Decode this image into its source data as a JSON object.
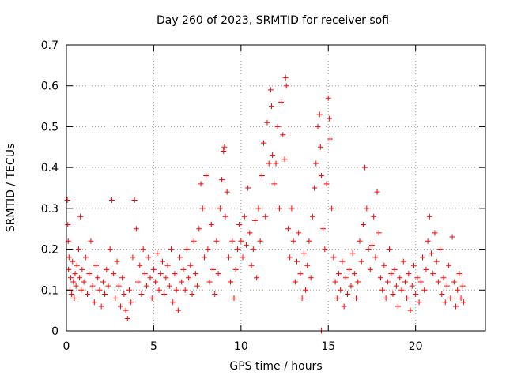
{
  "chart_data": {
    "type": "scatter",
    "title": "Day 260 of 2023, SRMTID for receiver sofi",
    "xlabel": "GPS time / hours",
    "ylabel": "SRMTID / TECUs",
    "xlim": [
      0,
      24
    ],
    "ylim": [
      0,
      0.7
    ],
    "xticks": [
      0,
      5,
      10,
      15,
      20
    ],
    "xtick_labels": [
      "0",
      "5",
      "10",
      "15",
      "20"
    ],
    "yticks": [
      0,
      0.1,
      0.2,
      0.3,
      0.4,
      0.5,
      0.6,
      0.7
    ],
    "ytick_labels": [
      "0",
      "0.1",
      "0.2",
      "0.3",
      "0.4",
      "0.5",
      "0.6",
      "0.7"
    ],
    "grid": true,
    "marker": "+",
    "series_color": "#ff0000",
    "series": [
      {
        "name": "SRMTID",
        "points": [
          [
            0.05,
            0.32
          ],
          [
            0.08,
            0.26
          ],
          [
            0.1,
            0.22
          ],
          [
            0.12,
            0.15
          ],
          [
            0.15,
            0.18
          ],
          [
            0.2,
            0.1
          ],
          [
            0.25,
            0.13
          ],
          [
            0.3,
            0.09
          ],
          [
            0.35,
            0.17
          ],
          [
            0.4,
            0.12
          ],
          [
            0.45,
            0.08
          ],
          [
            0.5,
            0.14
          ],
          [
            0.55,
            0.11
          ],
          [
            0.6,
            0.16
          ],
          [
            0.7,
            0.2
          ],
          [
            0.75,
            0.13
          ],
          [
            0.8,
            0.28
          ],
          [
            0.85,
            0.1
          ],
          [
            0.9,
            0.15
          ],
          [
            1.0,
            0.12
          ],
          [
            1.1,
            0.18
          ],
          [
            1.2,
            0.09
          ],
          [
            1.3,
            0.14
          ],
          [
            1.4,
            0.22
          ],
          [
            1.5,
            0.11
          ],
          [
            1.6,
            0.07
          ],
          [
            1.7,
            0.16
          ],
          [
            1.8,
            0.13
          ],
          [
            1.9,
            0.1
          ],
          [
            2.0,
            0.06
          ],
          [
            2.1,
            0.12
          ],
          [
            2.2,
            0.09
          ],
          [
            2.3,
            0.15
          ],
          [
            2.4,
            0.11
          ],
          [
            2.5,
            0.2
          ],
          [
            2.6,
            0.32
          ],
          [
            2.7,
            0.14
          ],
          [
            2.8,
            0.08
          ],
          [
            2.9,
            0.17
          ],
          [
            3.0,
            0.11
          ],
          [
            3.1,
            0.06
          ],
          [
            3.2,
            0.13
          ],
          [
            3.3,
            0.09
          ],
          [
            3.4,
            0.05
          ],
          [
            3.5,
            0.03
          ],
          [
            3.6,
            0.1
          ],
          [
            3.7,
            0.07
          ],
          [
            3.8,
            0.18
          ],
          [
            3.9,
            0.32
          ],
          [
            4.0,
            0.25
          ],
          [
            4.1,
            0.12
          ],
          [
            4.2,
            0.16
          ],
          [
            4.3,
            0.09
          ],
          [
            4.4,
            0.2
          ],
          [
            4.5,
            0.14
          ],
          [
            4.6,
            0.11
          ],
          [
            4.7,
            0.18
          ],
          [
            4.8,
            0.13
          ],
          [
            4.9,
            0.08
          ],
          [
            5.0,
            0.15
          ],
          [
            5.1,
            0.12
          ],
          [
            5.2,
            0.19
          ],
          [
            5.3,
            0.1
          ],
          [
            5.4,
            0.14
          ],
          [
            5.5,
            0.17
          ],
          [
            5.6,
            0.09
          ],
          [
            5.7,
            0.13
          ],
          [
            5.8,
            0.16
          ],
          [
            5.9,
            0.11
          ],
          [
            6.0,
            0.2
          ],
          [
            6.1,
            0.07
          ],
          [
            6.2,
            0.14
          ],
          [
            6.3,
            0.1
          ],
          [
            6.4,
            0.05
          ],
          [
            6.5,
            0.18
          ],
          [
            6.6,
            0.12
          ],
          [
            6.7,
            0.15
          ],
          [
            6.8,
            0.1
          ],
          [
            6.9,
            0.2
          ],
          [
            7.0,
            0.13
          ],
          [
            7.1,
            0.16
          ],
          [
            7.2,
            0.09
          ],
          [
            7.3,
            0.22
          ],
          [
            7.4,
            0.14
          ],
          [
            7.5,
            0.11
          ],
          [
            7.6,
            0.25
          ],
          [
            7.7,
            0.36
          ],
          [
            7.8,
            0.3
          ],
          [
            7.9,
            0.18
          ],
          [
            8.0,
            0.38
          ],
          [
            8.1,
            0.2
          ],
          [
            8.2,
            0.12
          ],
          [
            8.3,
            0.26
          ],
          [
            8.4,
            0.15
          ],
          [
            8.5,
            0.09
          ],
          [
            8.6,
            0.22
          ],
          [
            8.7,
            0.14
          ],
          [
            8.8,
            0.3
          ],
          [
            8.9,
            0.37
          ],
          [
            9.0,
            0.44
          ],
          [
            9.05,
            0.45
          ],
          [
            9.1,
            0.28
          ],
          [
            9.2,
            0.34
          ],
          [
            9.3,
            0.18
          ],
          [
            9.4,
            0.12
          ],
          [
            9.5,
            0.22
          ],
          [
            9.6,
            0.08
          ],
          [
            9.7,
            0.15
          ],
          [
            9.8,
            0.2
          ],
          [
            9.9,
            0.26
          ],
          [
            10.0,
            0.22
          ],
          [
            10.1,
            0.18
          ],
          [
            10.2,
            0.28
          ],
          [
            10.3,
            0.21
          ],
          [
            10.4,
            0.35
          ],
          [
            10.5,
            0.24
          ],
          [
            10.6,
            0.16
          ],
          [
            10.7,
            0.2
          ],
          [
            10.8,
            0.27
          ],
          [
            10.9,
            0.13
          ],
          [
            11.0,
            0.3
          ],
          [
            11.1,
            0.22
          ],
          [
            11.2,
            0.38
          ],
          [
            11.3,
            0.46
          ],
          [
            11.4,
            0.28
          ],
          [
            11.5,
            0.51
          ],
          [
            11.6,
            0.41
          ],
          [
            11.7,
            0.59
          ],
          [
            11.75,
            0.55
          ],
          [
            11.8,
            0.43
          ],
          [
            11.9,
            0.36
          ],
          [
            12.0,
            0.41
          ],
          [
            12.1,
            0.5
          ],
          [
            12.2,
            0.3
          ],
          [
            12.3,
            0.56
          ],
          [
            12.4,
            0.48
          ],
          [
            12.5,
            0.42
          ],
          [
            12.55,
            0.62
          ],
          [
            12.6,
            0.6
          ],
          [
            12.7,
            0.25
          ],
          [
            12.8,
            0.18
          ],
          [
            12.9,
            0.3
          ],
          [
            13.0,
            0.22
          ],
          [
            13.1,
            0.12
          ],
          [
            13.2,
            0.17
          ],
          [
            13.3,
            0.24
          ],
          [
            13.4,
            0.14
          ],
          [
            13.5,
            0.08
          ],
          [
            13.6,
            0.19
          ],
          [
            13.7,
            0.1
          ],
          [
            13.8,
            0.16
          ],
          [
            13.9,
            0.22
          ],
          [
            14.0,
            0.13
          ],
          [
            14.1,
            0.28
          ],
          [
            14.2,
            0.35
          ],
          [
            14.3,
            0.41
          ],
          [
            14.4,
            0.5
          ],
          [
            14.5,
            0.53
          ],
          [
            14.55,
            0.45
          ],
          [
            14.6,
            0.38
          ],
          [
            14.7,
            0.25
          ],
          [
            14.8,
            0.2
          ],
          [
            14.9,
            0.36
          ],
          [
            15.0,
            0.57
          ],
          [
            15.05,
            0.52
          ],
          [
            15.1,
            0.47
          ],
          [
            15.2,
            0.3
          ],
          [
            15.3,
            0.18
          ],
          [
            15.4,
            0.12
          ],
          [
            15.5,
            0.08
          ],
          [
            15.6,
            0.14
          ],
          [
            15.7,
            0.1
          ],
          [
            15.8,
            0.17
          ],
          [
            15.9,
            0.06
          ],
          [
            16.0,
            0.13
          ],
          [
            16.1,
            0.09
          ],
          [
            16.2,
            0.15
          ],
          [
            16.3,
            0.11
          ],
          [
            16.4,
            0.19
          ],
          [
            16.5,
            0.14
          ],
          [
            16.6,
            0.08
          ],
          [
            16.7,
            0.12
          ],
          [
            16.8,
            0.22
          ],
          [
            16.9,
            0.17
          ],
          [
            17.0,
            0.26
          ],
          [
            17.1,
            0.4
          ],
          [
            17.2,
            0.3
          ],
          [
            17.3,
            0.2
          ],
          [
            17.4,
            0.15
          ],
          [
            17.5,
            0.21
          ],
          [
            17.6,
            0.28
          ],
          [
            17.7,
            0.18
          ],
          [
            17.8,
            0.34
          ],
          [
            17.9,
            0.24
          ],
          [
            18.0,
            0.13
          ],
          [
            18.1,
            0.1
          ],
          [
            18.2,
            0.16
          ],
          [
            18.3,
            0.08
          ],
          [
            18.4,
            0.12
          ],
          [
            18.5,
            0.2
          ],
          [
            18.6,
            0.14
          ],
          [
            18.7,
            0.09
          ],
          [
            18.8,
            0.15
          ],
          [
            18.9,
            0.11
          ],
          [
            19.0,
            0.06
          ],
          [
            19.1,
            0.13
          ],
          [
            19.2,
            0.1
          ],
          [
            19.3,
            0.17
          ],
          [
            19.4,
            0.12
          ],
          [
            19.5,
            0.08
          ],
          [
            19.6,
            0.14
          ],
          [
            19.7,
            0.05
          ],
          [
            19.8,
            0.11
          ],
          [
            19.9,
            0.16
          ],
          [
            20.0,
            0.09
          ],
          [
            20.1,
            0.13
          ],
          [
            20.2,
            0.07
          ],
          [
            20.3,
            0.12
          ],
          [
            20.4,
            0.18
          ],
          [
            20.5,
            0.1
          ],
          [
            20.6,
            0.15
          ],
          [
            20.7,
            0.22
          ],
          [
            20.8,
            0.28
          ],
          [
            20.9,
            0.19
          ],
          [
            21.0,
            0.14
          ],
          [
            21.1,
            0.24
          ],
          [
            21.2,
            0.17
          ],
          [
            21.3,
            0.12
          ],
          [
            21.4,
            0.2
          ],
          [
            21.5,
            0.09
          ],
          [
            21.6,
            0.13
          ],
          [
            21.7,
            0.07
          ],
          [
            21.8,
            0.11
          ],
          [
            21.9,
            0.16
          ],
          [
            22.0,
            0.08
          ],
          [
            22.1,
            0.23
          ],
          [
            22.2,
            0.12
          ],
          [
            22.3,
            0.06
          ],
          [
            22.4,
            0.1
          ],
          [
            22.5,
            0.14
          ],
          [
            22.6,
            0.08
          ],
          [
            22.7,
            0.11
          ],
          [
            22.75,
            0.07
          ],
          [
            14.6,
            0.0
          ]
        ]
      }
    ]
  }
}
